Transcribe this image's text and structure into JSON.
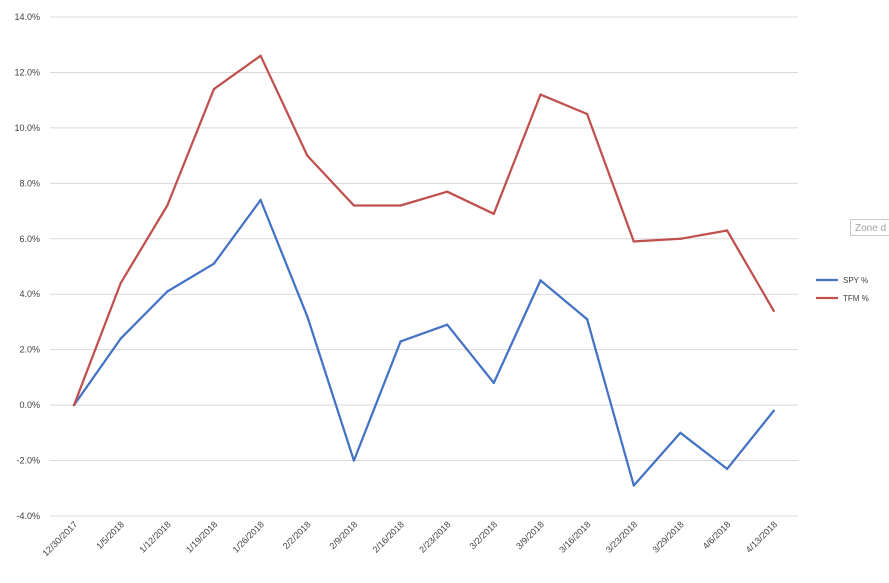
{
  "chart_data": {
    "type": "line",
    "categories": [
      "12/30/2017",
      "1/5/2018",
      "1/12/2018",
      "1/19/2018",
      "1/26/2018",
      "2/2/2018",
      "2/9/2018",
      "2/16/2018",
      "2/23/2018",
      "3/2/2018",
      "3/9/2018",
      "3/16/2018",
      "3/23/2018",
      "3/29/2018",
      "4/6/2018",
      "4/13/2018"
    ],
    "series": [
      {
        "name": "SPY %",
        "color": "#4472C4",
        "values": [
          0.0,
          2.4,
          4.1,
          5.1,
          7.4,
          3.2,
          -2.0,
          2.3,
          2.9,
          0.8,
          4.5,
          3.1,
          -2.9,
          -1.0,
          -2.3,
          -0.2
        ]
      },
      {
        "name": "TFM %",
        "color": "#C0504D",
        "values": [
          0.0,
          4.4,
          7.2,
          11.4,
          12.6,
          9.0,
          7.2,
          7.2,
          7.7,
          6.9,
          11.2,
          10.5,
          5.9,
          6.0,
          6.3,
          3.4
        ]
      }
    ],
    "ylim": [
      -4.0,
      14.0
    ],
    "yticks": [
      "-4.0%",
      "-2.0%",
      "0.0%",
      "2.0%",
      "4.0%",
      "6.0%",
      "8.0%",
      "10.0%",
      "12.0%",
      "14.0%"
    ],
    "ytick_values": [
      -4,
      -2,
      0,
      2,
      4,
      6,
      8,
      10,
      12,
      14
    ],
    "grid": true,
    "legend_position": "right",
    "title": "",
    "xlabel": "",
    "ylabel": ""
  },
  "overlay": {
    "zone_tag": "Zone d"
  }
}
